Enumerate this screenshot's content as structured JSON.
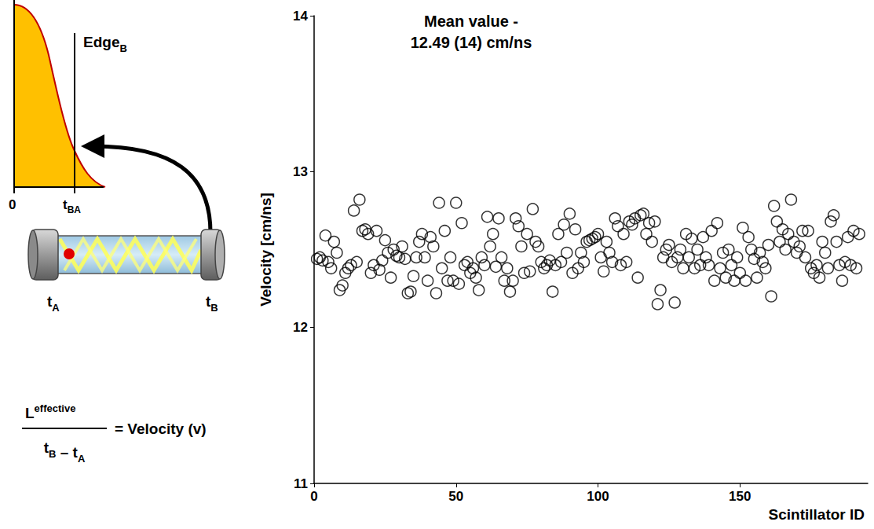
{
  "chart_data": {
    "type": "scatter",
    "annotation": [
      "Mean value -",
      "12.49 (14) cm/ns"
    ],
    "x_label": "Scintillator ID",
    "y_label": "Velocity [cm/ns]",
    "x": [
      1,
      2,
      3,
      4,
      5,
      6,
      7,
      8,
      9,
      10,
      11,
      12,
      13,
      14,
      15,
      16,
      17,
      18,
      19,
      20,
      21,
      22,
      23,
      24,
      25,
      26,
      27,
      28,
      29,
      30,
      31,
      32,
      33,
      34,
      35,
      36,
      37,
      38,
      39,
      40,
      41,
      42,
      43,
      44,
      45,
      46,
      47,
      48,
      49,
      50,
      51,
      52,
      53,
      54,
      55,
      56,
      57,
      58,
      59,
      60,
      61,
      62,
      63,
      64,
      65,
      66,
      67,
      68,
      69,
      70,
      71,
      72,
      73,
      74,
      75,
      76,
      77,
      78,
      79,
      80,
      81,
      82,
      83,
      84,
      85,
      86,
      87,
      88,
      89,
      90,
      91,
      92,
      93,
      94,
      95,
      96,
      97,
      98,
      99,
      100,
      101,
      102,
      103,
      104,
      105,
      106,
      107,
      108,
      109,
      110,
      111,
      112,
      113,
      114,
      115,
      116,
      117,
      118,
      119,
      120,
      121,
      122,
      123,
      124,
      125,
      126,
      127,
      128,
      129,
      130,
      131,
      132,
      133,
      134,
      135,
      136,
      137,
      138,
      139,
      140,
      141,
      142,
      143,
      144,
      145,
      146,
      147,
      148,
      149,
      150,
      151,
      152,
      153,
      154,
      155,
      156,
      157,
      158,
      159,
      160,
      161,
      162,
      163,
      164,
      165,
      166,
      167,
      168,
      169,
      170,
      171,
      172,
      173,
      174,
      175,
      176,
      177,
      178,
      179,
      180,
      181,
      182,
      183,
      184,
      185,
      186,
      187,
      188,
      189,
      190,
      191,
      192
    ],
    "values": [
      12.44,
      12.45,
      12.43,
      12.59,
      12.42,
      12.38,
      12.55,
      12.48,
      12.24,
      12.27,
      12.35,
      12.38,
      12.4,
      12.75,
      12.42,
      12.82,
      12.62,
      12.63,
      12.6,
      12.35,
      12.4,
      12.62,
      12.37,
      12.43,
      12.56,
      12.48,
      12.32,
      12.5,
      12.46,
      12.45,
      12.52,
      12.44,
      12.22,
      12.23,
      12.33,
      12.45,
      12.55,
      12.6,
      12.45,
      12.3,
      12.58,
      12.52,
      12.22,
      12.8,
      12.38,
      12.62,
      12.3,
      12.45,
      12.3,
      12.8,
      12.28,
      12.67,
      12.4,
      12.42,
      12.35,
      12.38,
      12.32,
      12.24,
      12.45,
      12.4,
      12.71,
      12.52,
      12.6,
      12.39,
      12.7,
      12.45,
      12.3,
      12.38,
      12.23,
      12.3,
      12.7,
      12.65,
      12.52,
      12.35,
      12.6,
      12.36,
      12.76,
      12.55,
      12.52,
      12.42,
      12.38,
      12.4,
      12.43,
      12.23,
      12.4,
      12.6,
      12.42,
      12.66,
      12.48,
      12.73,
      12.35,
      12.63,
      12.38,
      12.48,
      12.42,
      12.55,
      12.56,
      12.57,
      12.58,
      12.6,
      12.45,
      12.36,
      12.55,
      12.48,
      12.42,
      12.7,
      12.65,
      12.4,
      12.6,
      12.42,
      12.68,
      12.66,
      12.7,
      12.32,
      12.72,
      12.73,
      12.6,
      12.67,
      12.55,
      12.68,
      12.15,
      12.24,
      12.45,
      12.5,
      12.53,
      12.42,
      12.16,
      12.45,
      12.5,
      12.38,
      12.6,
      12.45,
      12.57,
      12.38,
      12.5,
      12.4,
      12.58,
      12.45,
      12.4,
      12.62,
      12.3,
      12.67,
      12.38,
      12.48,
      12.32,
      12.5,
      12.4,
      12.3,
      12.45,
      12.35,
      12.64,
      12.3,
      12.58,
      12.5,
      12.44,
      12.32,
      12.48,
      12.42,
      12.38,
      12.53,
      12.2,
      12.78,
      12.68,
      12.55,
      12.63,
      12.5,
      12.6,
      12.82,
      12.55,
      12.48,
      12.52,
      12.62,
      12.45,
      12.62,
      12.38,
      12.35,
      12.4,
      12.32,
      12.55,
      12.48,
      12.38,
      12.68,
      12.72,
      12.55,
      12.4,
      12.3,
      12.42,
      12.58,
      12.4,
      12.62,
      12.38,
      12.6
    ],
    "color": "#000000",
    "marker": "circle_open",
    "xlim": [
      0,
      195
    ],
    "xticks": [
      0,
      50,
      100,
      150
    ],
    "ylim": [
      11,
      14
    ],
    "yticks": [
      11,
      12,
      13,
      14
    ],
    "grid": false
  },
  "diagram": {
    "edge_label": {
      "text": "Edge",
      "sub": "B"
    },
    "origin_label": "0",
    "time_label": {
      "text": "t",
      "sub": "BA"
    },
    "end_labels": [
      {
        "text": "t",
        "sub": "A"
      },
      {
        "text": "t",
        "sub": "B"
      }
    ],
    "formula": {
      "numerator": {
        "text": "L",
        "sup": "effective"
      },
      "denominator": [
        {
          "text": "t",
          "sub": "B"
        },
        {
          "text": " – "
        },
        {
          "text": "t",
          "sub": "A"
        }
      ],
      "result": "= Velocity (v)"
    }
  }
}
